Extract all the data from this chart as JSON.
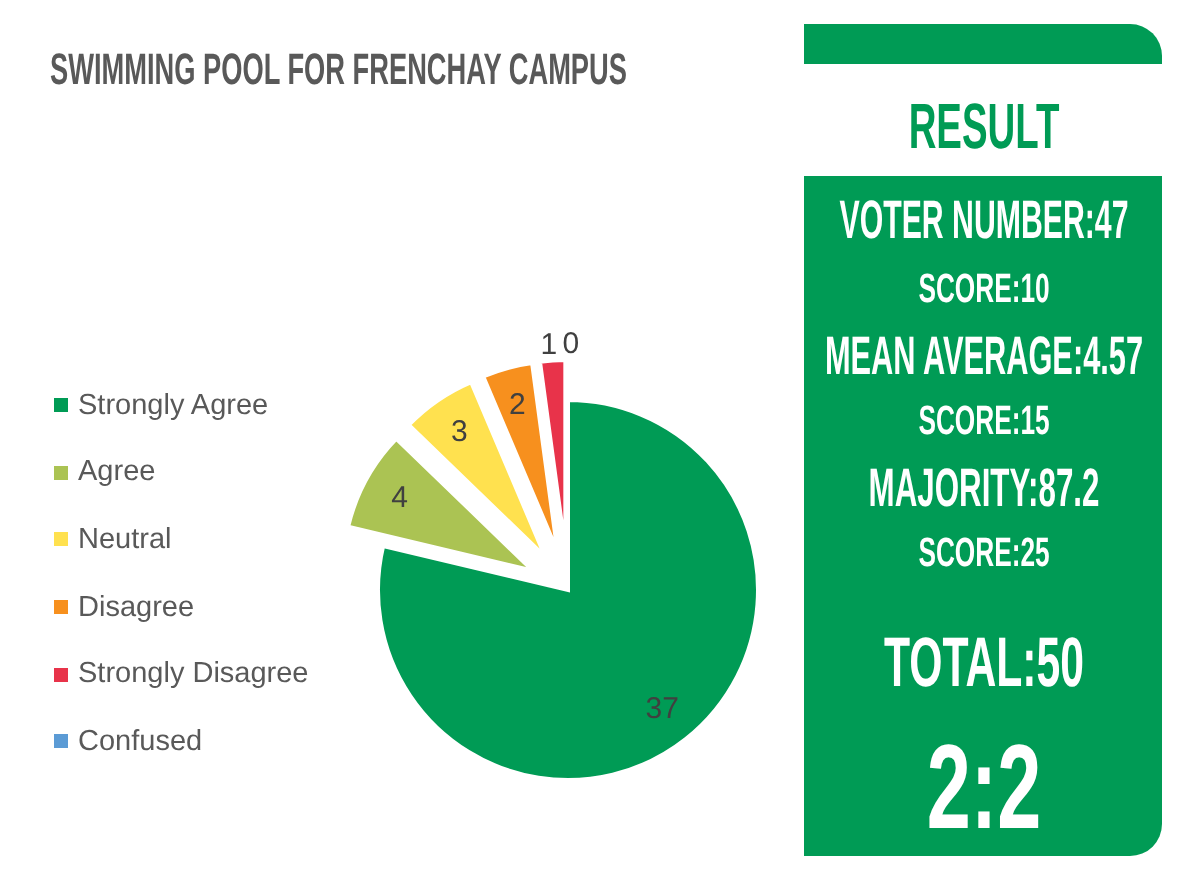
{
  "chart_data": [
    {
      "type": "pie",
      "title": "SWIMMING POOL FOR FRENCHAY CAMPUS",
      "categories": [
        "Strongly Agree",
        "Agree",
        "Neutral",
        "Disagree",
        "Strongly Disagree",
        "Confused"
      ],
      "values": [
        37,
        4,
        3,
        2,
        1,
        0
      ],
      "value_labels": [
        "37",
        "4",
        "3",
        "2",
        "1",
        "0"
      ],
      "colors": [
        "#009b55",
        "#abc353",
        "#ffe14f",
        "#f7901e",
        "#e8334a",
        "#5b9bd5"
      ],
      "legend": "left"
    },
    {
      "type": "other",
      "title": "RESULT",
      "annotations": [
        "VOTER NUMBER:47",
        "SCORE:10",
        "MEAN AVERAGE:4.57",
        "SCORE:15",
        "MAJORITY:87.2",
        "SCORE:25",
        "TOTAL:50",
        "2:2"
      ]
    }
  ]
}
